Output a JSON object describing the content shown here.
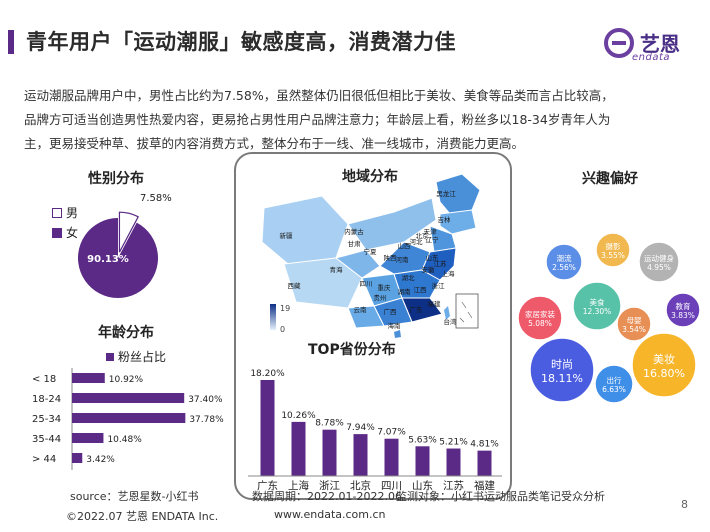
{
  "header": {
    "title": "青年用户「运动潮服」敏感度高，消费潜力佳",
    "logo_cn": "艺恩",
    "logo_en": "endata"
  },
  "intro_lines": [
    "运动潮服品牌用户中，男性占比约为7.58%，虽然整体仍旧很低但相比于美妆、美食等品类而言占比较高，",
    "品牌方可适当创造男性热爱内容，更易抢占男性用户品牌注意力；年龄层上看，粉丝多以18-34岁青年人为",
    "主，更易接受种草、拔草的内容消费方式，整体分布于一线、准一线城市，消费能力更高。"
  ],
  "gender": {
    "title": "性别分布",
    "legend": [
      "男",
      "女"
    ],
    "colors": [
      "#ffffff",
      "#5b2a86"
    ]
  },
  "age": {
    "title": "年龄分布",
    "legend": "粉丝占比",
    "color": "#5b2a86"
  },
  "map": {
    "title": "地域分布",
    "scale_max": "19",
    "scale_min": "0",
    "provinces": [
      "黑龙江",
      "吉林",
      "辽宁",
      "北京",
      "天津",
      "河北",
      "山西",
      "内蒙古",
      "山东",
      "河南",
      "陕西",
      "宁夏",
      "甘肃",
      "青海",
      "新疆",
      "西藏",
      "四川",
      "重庆",
      "湖北",
      "安徽",
      "江苏",
      "上海",
      "浙江",
      "江西",
      "湖南",
      "贵州",
      "云南",
      "广西",
      "广东",
      "福建",
      "台湾",
      "海南"
    ]
  },
  "top_provinces": {
    "title": "TOP省份分布",
    "color": "#5b2a86"
  },
  "interest": {
    "title": "兴趣偏好",
    "bubbles": [
      {
        "label": "潮流",
        "value": "2.56%",
        "color": "#5b8ee6"
      },
      {
        "label": "摄影",
        "value": "3.55%",
        "color": "#f0b84e"
      },
      {
        "label": "运动健身",
        "value": "4.95%",
        "color": "#b3b3b3"
      },
      {
        "label": "家居家装",
        "value": "5.08%",
        "color": "#ef5a6b"
      },
      {
        "label": "美食",
        "value": "12.30%",
        "color": "#58c2a8"
      },
      {
        "label": "母婴",
        "value": "3.54%",
        "color": "#e88f55"
      },
      {
        "label": "教育",
        "value": "3.83%",
        "color": "#6a3fb8"
      },
      {
        "label": "时尚",
        "value": "18.11%",
        "color": "#4a5ce0"
      },
      {
        "label": "美妆",
        "value": "16.80%",
        "color": "#f7b52a"
      },
      {
        "label": "出行",
        "value": "6.63%",
        "color": "#3f8fe8"
      }
    ]
  },
  "footer": {
    "source": "source：艺恩星数-小红书",
    "period": "数据周期：2022.01-2022.06",
    "target": "监测对象：小红书运动服品类笔记受众分析",
    "copyright": "©2022.07 艺恩 ENDATA Inc.",
    "url": "www.endata.com.cn",
    "page": "8"
  },
  "chart_data": [
    {
      "type": "pie",
      "categories": [
        "男",
        "女"
      ],
      "values": [
        7.58,
        90.13
      ],
      "labels": [
        "7.58%",
        "90.13%"
      ]
    },
    {
      "type": "bar",
      "orientation": "horizontal",
      "categories": [
        "< 18",
        "18-24",
        "25-34",
        "35-44",
        "> 44"
      ],
      "values": [
        10.92,
        37.4,
        37.78,
        10.48,
        3.42
      ],
      "labels": [
        "10.92%",
        "37.40%",
        "37.78%",
        "10.48%",
        "3.42%"
      ],
      "legend": "粉丝占比"
    },
    {
      "type": "bar",
      "title": "TOP省份分布",
      "categories": [
        "广东",
        "上海",
        "浙江",
        "北京",
        "四川",
        "山东",
        "江苏",
        "福建"
      ],
      "values": [
        18.2,
        10.26,
        8.78,
        7.94,
        7.07,
        5.63,
        5.21,
        4.81
      ],
      "labels": [
        "18.20%",
        "10.26%",
        "8.78%",
        "7.94%",
        "7.07%",
        "5.63%",
        "5.21%",
        "4.81%"
      ]
    }
  ]
}
